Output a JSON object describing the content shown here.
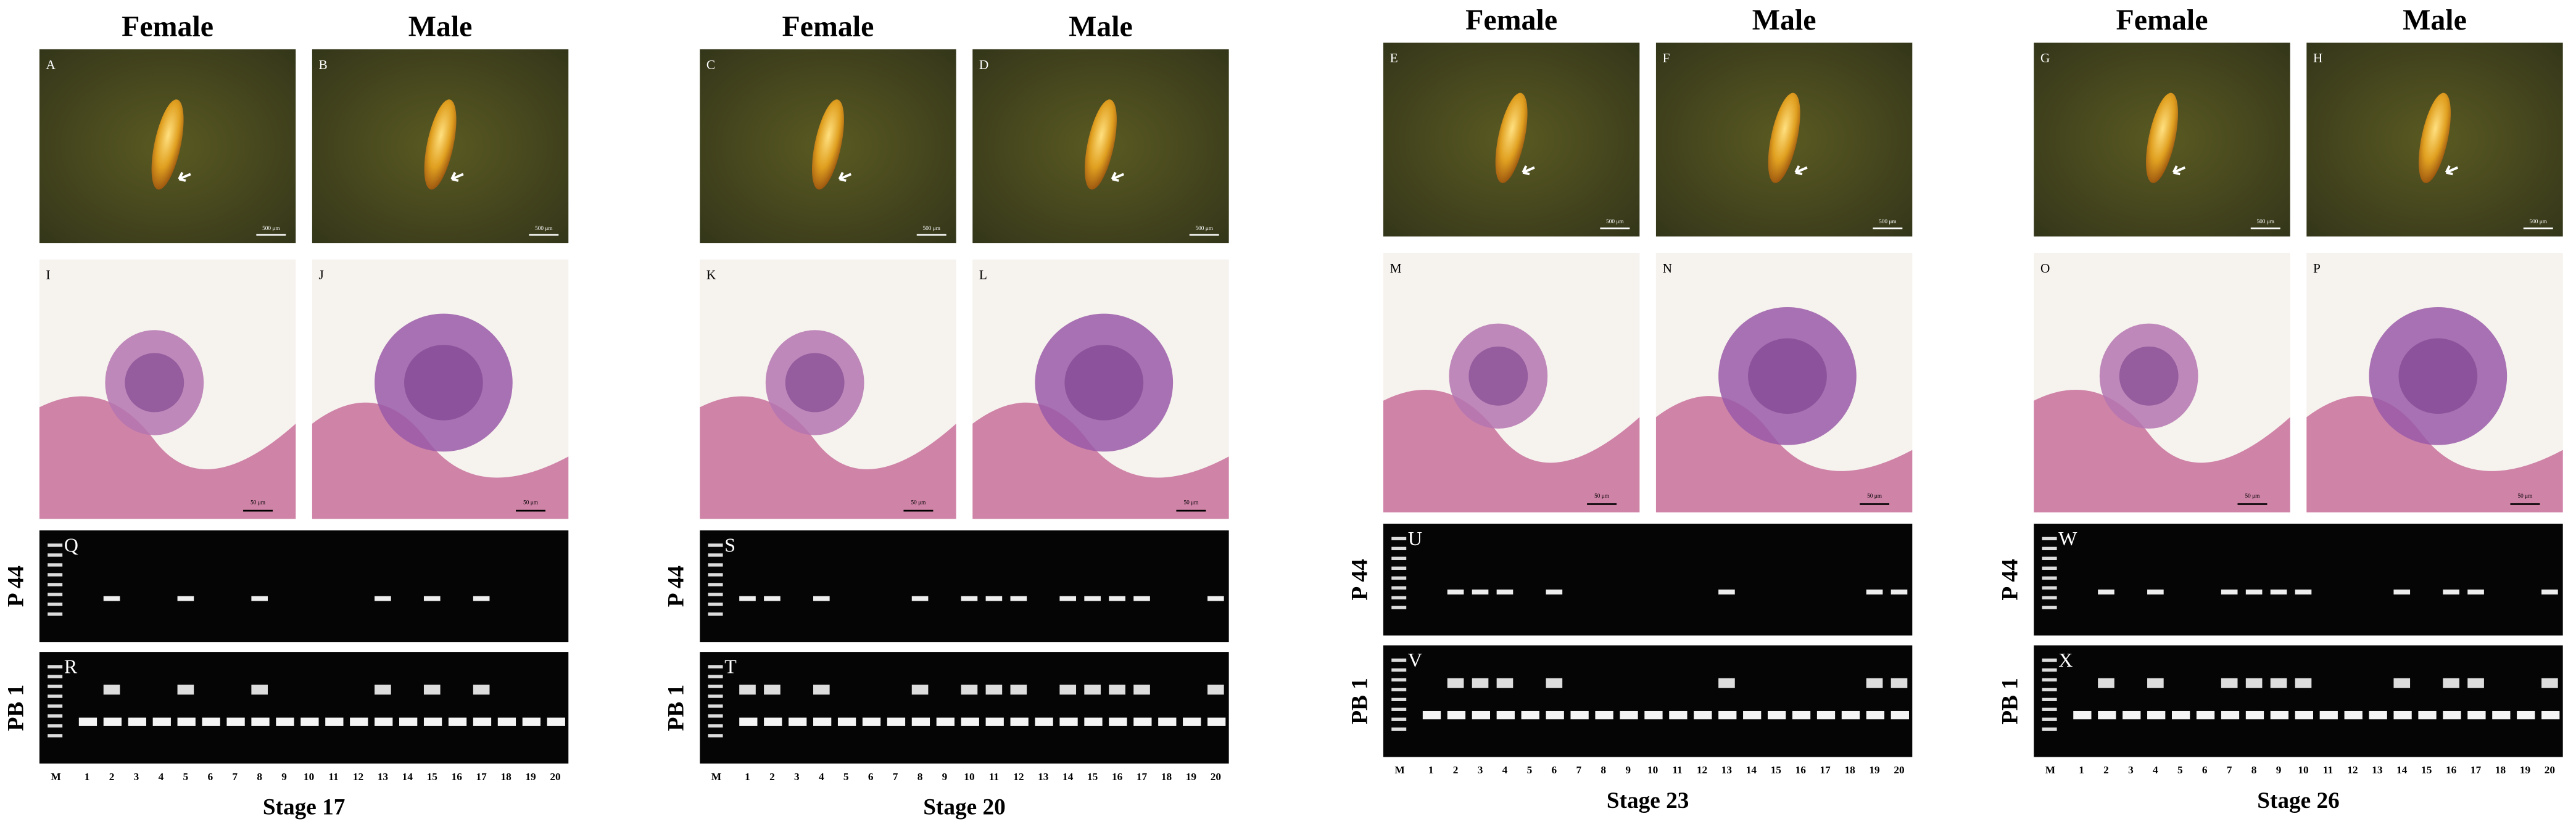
{
  "panels": [
    {
      "female": "Female",
      "male": "Male",
      "photo_labels": [
        "A",
        "B"
      ],
      "histology_labels": [
        "I",
        "J"
      ],
      "gel_labels": [
        "Q",
        "R"
      ],
      "stage": "Stage 17"
    },
    {
      "female": "Female",
      "male": "Male",
      "photo_labels": [
        "C",
        "D"
      ],
      "histology_labels": [
        "K",
        "L"
      ],
      "gel_labels": [
        "S",
        "T"
      ],
      "stage": "Stage 20"
    },
    {
      "female": "Female",
      "male": "Male",
      "photo_labels": [
        "E",
        "F"
      ],
      "histology_labels": [
        "M",
        "N"
      ],
      "gel_labels": [
        "U",
        "V"
      ],
      "stage": "Stage 23"
    },
    {
      "female": "Female",
      "male": "Male",
      "photo_labels": [
        "G",
        "H"
      ],
      "histology_labels": [
        "O",
        "P"
      ],
      "gel_labels": [
        "W",
        "X"
      ],
      "stage": "Stage 26"
    }
  ],
  "photo_scale": "500 μm",
  "histology_scale": "50 μm",
  "row_labels": [
    "P 44",
    "PB 1"
  ],
  "lanes": [
    "M",
    "1",
    "2",
    "3",
    "4",
    "5",
    "6",
    "7",
    "8",
    "9",
    "10",
    "11",
    "12",
    "13",
    "14",
    "15",
    "16",
    "17",
    "18",
    "19",
    "20"
  ]
}
